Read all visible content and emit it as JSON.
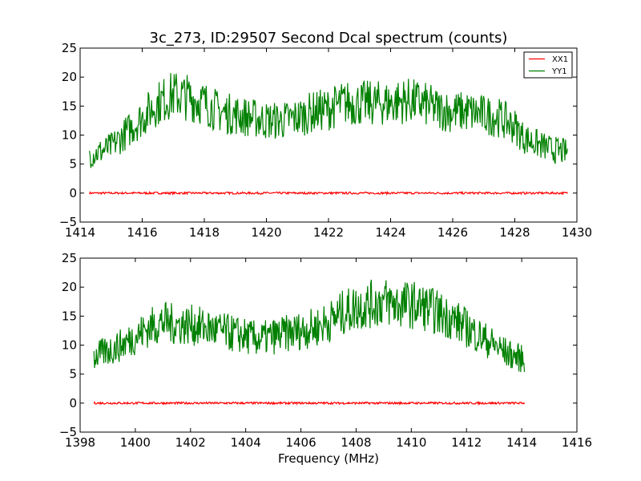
{
  "figure": {
    "title": "3c_273, ID:29507 Second Dcal spectrum (counts)",
    "xlabel": "Frequency (MHz)"
  },
  "chart_data": [
    {
      "type": "line",
      "title": "3c_273, ID:29507 Second Dcal spectrum (counts)",
      "xlabel": "",
      "ylabel": "",
      "xlim": [
        1414,
        1430
      ],
      "ylim": [
        -5,
        25
      ],
      "xticks": [
        "1414",
        "1416",
        "1418",
        "1420",
        "1422",
        "1424",
        "1426",
        "1428",
        "1430"
      ],
      "yticks": [
        "−5",
        "0",
        "5",
        "10",
        "15",
        "20",
        "25"
      ],
      "legend": {
        "placement": "top-right",
        "entries": [
          "XX1",
          "YY1"
        ]
      },
      "grid": false,
      "series": [
        {
          "name": "XX1",
          "color": "#ff0000",
          "x": [
            1414.3,
            1415.0,
            1416.0,
            1417.0,
            1418.0,
            1419.0,
            1420.0,
            1421.0,
            1422.0,
            1423.0,
            1424.0,
            1425.0,
            1426.0,
            1427.0,
            1428.0,
            1429.0,
            1429.7
          ],
          "y": [
            0,
            0,
            0,
            0,
            0,
            0,
            0,
            0,
            0,
            0,
            0,
            0,
            0,
            0,
            0,
            0,
            0
          ]
        },
        {
          "name": "YY1",
          "color": "#008000",
          "x": [
            1414.3,
            1414.6,
            1415.0,
            1415.5,
            1416.0,
            1416.5,
            1417.0,
            1417.5,
            1418.0,
            1418.5,
            1419.0,
            1419.5,
            1420.0,
            1420.5,
            1421.0,
            1421.5,
            1422.0,
            1422.5,
            1423.0,
            1423.5,
            1424.0,
            1424.5,
            1425.0,
            1425.5,
            1426.0,
            1426.5,
            1427.0,
            1427.5,
            1428.0,
            1428.3,
            1428.7,
            1429.2,
            1429.7
          ],
          "y": [
            6.5,
            7.0,
            8.0,
            10.5,
            13.0,
            15.5,
            17.0,
            16.5,
            15.5,
            14.0,
            13.5,
            13.0,
            12.5,
            12.5,
            13.0,
            14.0,
            14.5,
            15.5,
            15.5,
            15.5,
            15.5,
            16.0,
            15.5,
            14.5,
            14.0,
            14.0,
            13.5,
            13.0,
            11.5,
            9.5,
            8.5,
            7.5,
            7.0
          ]
        }
      ]
    },
    {
      "type": "line",
      "title": "",
      "xlabel": "Frequency (MHz)",
      "ylabel": "",
      "xlim": [
        1398,
        1416
      ],
      "ylim": [
        -5,
        25
      ],
      "xticks": [
        "1398",
        "1400",
        "1402",
        "1404",
        "1406",
        "1408",
        "1410",
        "1412",
        "1414",
        "1416"
      ],
      "yticks": [
        "−5",
        "0",
        "5",
        "10",
        "15",
        "20",
        "25"
      ],
      "grid": false,
      "series": [
        {
          "color": "#ff0000",
          "x": [
            1398.5,
            1399.0,
            1400.0,
            1401.0,
            1402.0,
            1403.0,
            1404.0,
            1405.0,
            1406.0,
            1407.0,
            1408.0,
            1409.0,
            1410.0,
            1411.0,
            1412.0,
            1413.0,
            1414.1
          ],
          "y": [
            0,
            0,
            0,
            0,
            0,
            0,
            0,
            0,
            0,
            0,
            0,
            0,
            0,
            0,
            0,
            0,
            0
          ]
        },
        {
          "color": "#008000",
          "x": [
            1398.5,
            1399.0,
            1399.5,
            1400.0,
            1400.5,
            1401.0,
            1401.5,
            1402.0,
            1402.5,
            1403.0,
            1403.5,
            1404.0,
            1404.5,
            1405.0,
            1405.5,
            1406.0,
            1406.5,
            1407.0,
            1407.5,
            1408.0,
            1408.5,
            1409.0,
            1409.5,
            1410.0,
            1410.5,
            1411.0,
            1411.5,
            1412.0,
            1412.5,
            1413.0,
            1413.5,
            1414.1
          ],
          "y": [
            8.0,
            9.0,
            10.0,
            11.5,
            13.0,
            14.0,
            13.5,
            13.5,
            13.0,
            12.5,
            12.0,
            11.5,
            11.0,
            11.5,
            12.0,
            12.5,
            13.0,
            14.0,
            15.5,
            16.5,
            17.0,
            17.5,
            17.0,
            17.0,
            16.5,
            15.5,
            14.5,
            13.0,
            11.5,
            10.0,
            8.5,
            7.5
          ]
        }
      ]
    }
  ]
}
